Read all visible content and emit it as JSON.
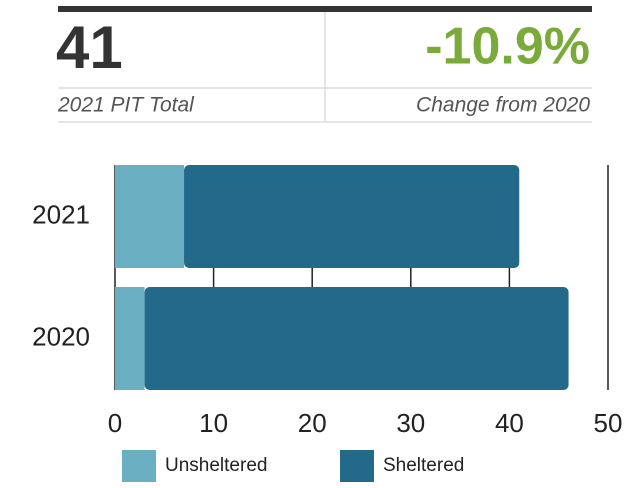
{
  "stats": {
    "total": {
      "value": "41",
      "label": "2021 PIT Total"
    },
    "change": {
      "value": "-10.9%",
      "label": "Change from 2020"
    }
  },
  "chart_data": {
    "type": "bar",
    "orientation": "horizontal",
    "stacked": true,
    "categories": [
      "2021",
      "2020"
    ],
    "series": [
      {
        "name": "Unsheltered",
        "color": "#6aafc2",
        "values": [
          7,
          3
        ]
      },
      {
        "name": "Sheltered",
        "color": "#236a8a",
        "values": [
          34,
          43
        ]
      }
    ],
    "xlim": [
      0,
      50
    ],
    "xticks": [
      0,
      10,
      20,
      30,
      40,
      50
    ],
    "grid": true,
    "legend": "bottom"
  }
}
